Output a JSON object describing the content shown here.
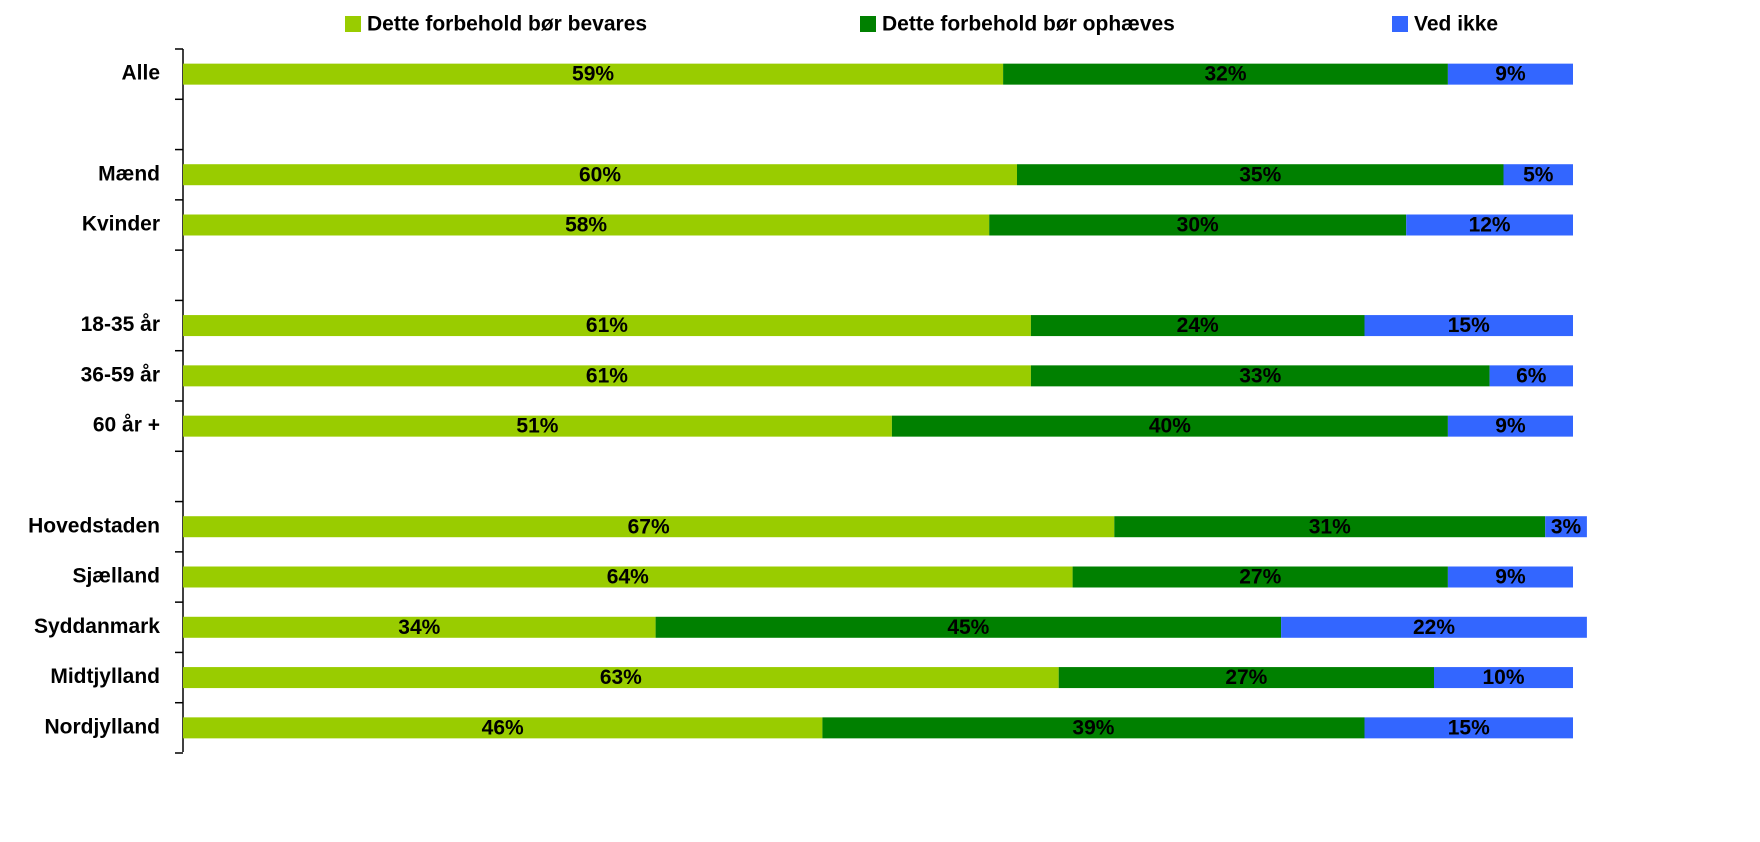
{
  "chart_data": {
    "type": "stacked-bar-horizontal",
    "categories": [
      "Alle",
      null,
      "Mænd",
      "Kvinder",
      null,
      "18-35 år",
      "36-59 år",
      "60 år +",
      null,
      "Hovedstaden",
      "Sjælland",
      "Syddanmark",
      "Midtjylland",
      "Nordjylland"
    ],
    "xlim": [
      0,
      100
    ],
    "legend": "top",
    "series": [
      {
        "name": "Dette forbehold bør bevares",
        "color": "#99cc00",
        "values": [
          59,
          null,
          60,
          58,
          null,
          61,
          61,
          51,
          null,
          67,
          64,
          34,
          63,
          46
        ],
        "value_labels": [
          "59%",
          null,
          "60%",
          "58%",
          null,
          "61%",
          "61%",
          "51%",
          null,
          "67%",
          "64%",
          "34%",
          "63%",
          "46%"
        ]
      },
      {
        "name": "Dette forbehold bør ophæves",
        "color": "#008000",
        "values": [
          32,
          null,
          35,
          30,
          null,
          24,
          33,
          40,
          null,
          31,
          27,
          45,
          27,
          39
        ],
        "value_labels": [
          "32%",
          null,
          "35%",
          "30%",
          null,
          "24%",
          "33%",
          "40%",
          null,
          "31%",
          "27%",
          "45%",
          "27%",
          "39%"
        ]
      },
      {
        "name": "Ved ikke",
        "color": "#3366ff",
        "values": [
          9,
          null,
          5,
          12,
          null,
          15,
          6,
          9,
          null,
          3,
          9,
          22,
          10,
          15
        ],
        "value_labels": [
          "9%",
          null,
          "5%",
          "12%",
          null,
          "15%",
          "6%",
          "9%",
          null,
          "3%",
          "9%",
          "22%",
          "10%",
          "15%"
        ]
      }
    ]
  }
}
